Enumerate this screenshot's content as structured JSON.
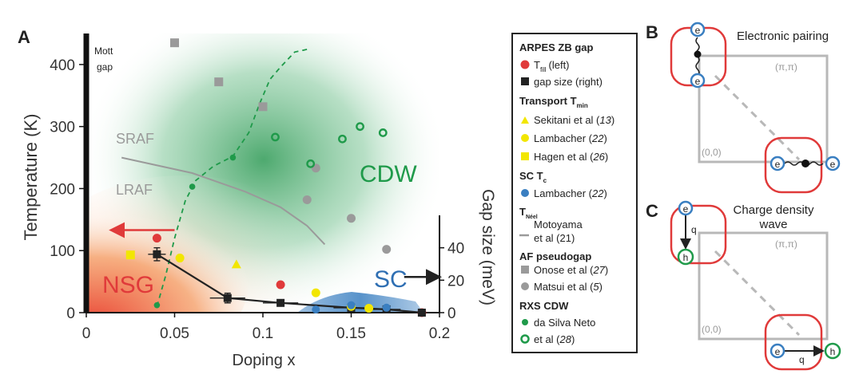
{
  "chart_data": {
    "type": "scatter",
    "panel_label": "A",
    "xlabel": "Doping x",
    "ylabel_left": "Temperature (K)",
    "ylabel_right": "Gap size (meV)",
    "xlim": [
      0,
      0.2
    ],
    "ylim_left": [
      0,
      450
    ],
    "ylim_right": [
      0,
      60
    ],
    "xticks": [
      "0",
      "0.05",
      "0.1",
      "0.15",
      "0.2"
    ],
    "xtick_values": [
      0,
      0.05,
      0.1,
      0.15,
      0.2
    ],
    "yticks_left": [
      "0",
      "100",
      "200",
      "300",
      "400"
    ],
    "ytick_left_values": [
      0,
      100,
      200,
      300,
      400
    ],
    "yticks_right": [
      "0",
      "20",
      "40"
    ],
    "ytick_right_values": [
      0,
      20,
      40
    ],
    "region_labels": {
      "mott": [
        "Mott",
        "gap"
      ],
      "sraf": "SRAF",
      "lraf": "LRAF",
      "cdw": "CDW",
      "nsg": "NSG",
      "sc": "SC"
    },
    "colors": {
      "red": "#e03a3a",
      "black": "#222222",
      "yellow": "#f2e600",
      "blue": "#3a7fc1",
      "green": "#1f9a4a",
      "gray": "#9a9a9a",
      "orange": "#f07a3a"
    },
    "series": [
      {
        "name": "T_fill (left)",
        "marker": "circle-red",
        "x": [
          0.04,
          0.11,
          0.19
        ],
        "y": [
          120,
          45,
          0
        ]
      },
      {
        "name": "gap size (right)",
        "marker": "square-black",
        "axis": "right",
        "x": [
          0.04,
          0.08,
          0.11,
          0.15,
          0.17,
          0.19
        ],
        "y": [
          36,
          9,
          6,
          3,
          2,
          0
        ],
        "xerr": [
          0.005,
          0.01,
          0.01,
          0.01,
          0.008,
          0.0
        ],
        "yerr": [
          4,
          3,
          1.5,
          1,
          1,
          0
        ]
      },
      {
        "name": "Sekitani et al (13)",
        "marker": "triangle-yellow",
        "x": [
          0.085
        ],
        "y": [
          78
        ]
      },
      {
        "name": "Lambacher (22)",
        "marker": "circle-yellow",
        "x": [
          0.053,
          0.13,
          0.15,
          0.16
        ],
        "y": [
          88,
          32,
          10,
          7
        ]
      },
      {
        "name": "Hagen et al (26)",
        "marker": "square-yellow",
        "x": [
          0.025
        ],
        "y": [
          93
        ]
      },
      {
        "name": "Lambacher (22) SC",
        "marker": "circle-blue",
        "x": [
          0.13,
          0.15,
          0.17
        ],
        "y": [
          5,
          12,
          8
        ]
      },
      {
        "name": "Motoyama et al (21)",
        "marker": "line-gray",
        "x": [
          0.02,
          0.06,
          0.09,
          0.11,
          0.125,
          0.135
        ],
        "y": [
          250,
          225,
          195,
          170,
          140,
          110
        ]
      },
      {
        "name": "Onose et al (27)",
        "marker": "square-gray",
        "x": [
          0.05,
          0.075,
          0.1
        ],
        "y": [
          435,
          372,
          332
        ]
      },
      {
        "name": "Matsui et al (5)",
        "marker": "circle-gray",
        "x": [
          0.125,
          0.13,
          0.15,
          0.17
        ],
        "y": [
          182,
          233,
          152,
          102
        ]
      },
      {
        "name": "da Silva Neto et al (28) filled",
        "marker": "circle-green",
        "x": [
          0.04,
          0.06,
          0.083
        ],
        "y": [
          12,
          203,
          250
        ]
      },
      {
        "name": "da Silva Neto et al (28) open",
        "marker": "circle-green-open",
        "x": [
          0.107,
          0.127,
          0.145,
          0.155,
          0.168
        ],
        "y": [
          283,
          240,
          280,
          300,
          290
        ]
      }
    ],
    "cdw_dashed_curve": {
      "x": [
        0.04,
        0.045,
        0.05,
        0.056,
        0.062,
        0.072,
        0.083,
        0.092,
        0.098,
        0.104,
        0.11,
        0.118,
        0.126
      ],
      "y": [
        10,
        60,
        120,
        180,
        213,
        236,
        252,
        290,
        336,
        376,
        396,
        420,
        425
      ]
    },
    "gap_arrow_left": {
      "x_from": 0.05,
      "x_to": 0.015,
      "y": 133
    },
    "gap_arrow_right": {
      "x_from": 0.18,
      "x_to": 0.2,
      "y": 22
    }
  },
  "legend": {
    "title": "ARPES ZB gap",
    "items_arpes": [
      "T",
      "fill",
      "(left)",
      "gap size (right)"
    ],
    "transport_title": "Transport T",
    "transport_sub": "min",
    "items_transport": [
      "Sekitani et al (",
      "13",
      ")",
      "Lambacher (",
      "22",
      ")",
      "Hagen et al (",
      "26",
      ")"
    ],
    "sc_title": "SC T",
    "sc_sub": "c",
    "items_sc": [
      "Lambacher (",
      "22",
      ")"
    ],
    "neel_title": "T",
    "neel_sub": "Néel",
    "items_neel": [
      "Motoyama",
      "et al (21)"
    ],
    "afpg_title": "AF pseudogap",
    "items_afpg": [
      "Onose et al (",
      "27",
      ")",
      "Matsui et al (",
      "5",
      ")"
    ],
    "rxs_title": "RXS CDW",
    "items_rxs": [
      "da Silva Neto",
      "et al (",
      "28",
      ")"
    ]
  },
  "panel_b": {
    "label": "B",
    "title": "Electronic pairing",
    "corner_tr": "(π,π)",
    "corner_bl": "(0,0)",
    "e": "e"
  },
  "panel_c": {
    "label": "C",
    "title_line1": "Charge density",
    "title_line2": "wave",
    "corner_tr": "(π,π)",
    "corner_bl": "(0,0)",
    "e": "e",
    "h": "h",
    "q": "q"
  }
}
